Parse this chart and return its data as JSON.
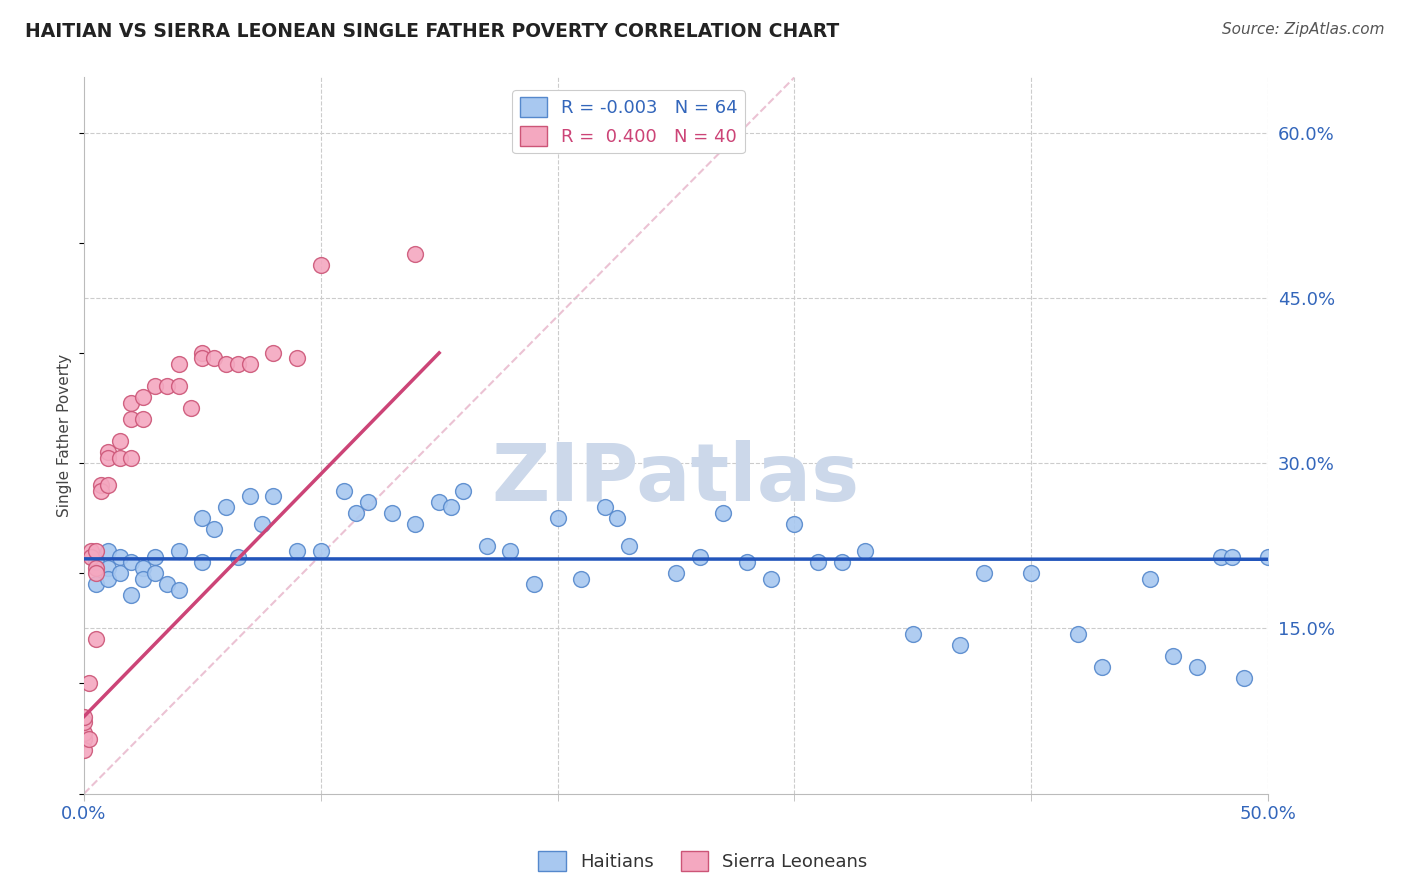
{
  "title": "HAITIAN VS SIERRA LEONEAN SINGLE FATHER POVERTY CORRELATION CHART",
  "source": "Source: ZipAtlas.com",
  "ylabel": "Single Father Poverty",
  "y_tick_labels": [
    "15.0%",
    "30.0%",
    "45.0%",
    "60.0%"
  ],
  "y_tick_values": [
    0.15,
    0.3,
    0.45,
    0.6
  ],
  "x_tick_values": [
    0.0,
    0.1,
    0.2,
    0.3,
    0.4,
    0.5
  ],
  "xlim": [
    0.0,
    0.5
  ],
  "ylim": [
    0.0,
    0.65
  ],
  "haitian_color": "#a8c8f0",
  "sierra_color": "#f4a8c0",
  "haitian_edge": "#5588cc",
  "sierra_edge": "#cc5577",
  "blue_line_color": "#2255bb",
  "pink_line_color": "#cc4477",
  "pink_dash_color": "#e8b8cc",
  "title_color": "#222222",
  "axis_label_color": "#3366bb",
  "grid_color": "#cccccc",
  "watermark_color": "#ccd8ea",
  "legend_box_color": "#dddddd",
  "haitian_x": [
    0.005,
    0.005,
    0.01,
    0.01,
    0.01,
    0.015,
    0.015,
    0.02,
    0.02,
    0.025,
    0.025,
    0.03,
    0.03,
    0.035,
    0.04,
    0.04,
    0.05,
    0.05,
    0.055,
    0.06,
    0.065,
    0.07,
    0.075,
    0.08,
    0.09,
    0.1,
    0.11,
    0.115,
    0.12,
    0.13,
    0.14,
    0.15,
    0.155,
    0.16,
    0.17,
    0.18,
    0.19,
    0.2,
    0.21,
    0.22,
    0.225,
    0.23,
    0.25,
    0.26,
    0.27,
    0.28,
    0.29,
    0.3,
    0.31,
    0.32,
    0.33,
    0.35,
    0.37,
    0.38,
    0.4,
    0.42,
    0.43,
    0.45,
    0.46,
    0.47,
    0.48,
    0.485,
    0.49,
    0.5
  ],
  "haitian_y": [
    0.21,
    0.19,
    0.22,
    0.205,
    0.195,
    0.215,
    0.2,
    0.21,
    0.18,
    0.205,
    0.195,
    0.215,
    0.2,
    0.19,
    0.22,
    0.185,
    0.25,
    0.21,
    0.24,
    0.26,
    0.215,
    0.27,
    0.245,
    0.27,
    0.22,
    0.22,
    0.275,
    0.255,
    0.265,
    0.255,
    0.245,
    0.265,
    0.26,
    0.275,
    0.225,
    0.22,
    0.19,
    0.25,
    0.195,
    0.26,
    0.25,
    0.225,
    0.2,
    0.215,
    0.255,
    0.21,
    0.195,
    0.245,
    0.21,
    0.21,
    0.22,
    0.145,
    0.135,
    0.2,
    0.2,
    0.145,
    0.115,
    0.195,
    0.125,
    0.115,
    0.215,
    0.215,
    0.105,
    0.215
  ],
  "sierra_x": [
    0.0,
    0.0,
    0.0,
    0.0,
    0.0,
    0.002,
    0.002,
    0.003,
    0.003,
    0.005,
    0.005,
    0.005,
    0.005,
    0.007,
    0.007,
    0.01,
    0.01,
    0.01,
    0.015,
    0.015,
    0.02,
    0.02,
    0.02,
    0.025,
    0.025,
    0.03,
    0.035,
    0.04,
    0.04,
    0.045,
    0.05,
    0.05,
    0.055,
    0.06,
    0.065,
    0.07,
    0.08,
    0.09,
    0.1,
    0.14
  ],
  "sierra_y": [
    0.05,
    0.04,
    0.055,
    0.065,
    0.07,
    0.05,
    0.1,
    0.22,
    0.215,
    0.22,
    0.205,
    0.2,
    0.14,
    0.28,
    0.275,
    0.31,
    0.305,
    0.28,
    0.32,
    0.305,
    0.355,
    0.34,
    0.305,
    0.36,
    0.34,
    0.37,
    0.37,
    0.39,
    0.37,
    0.35,
    0.4,
    0.395,
    0.395,
    0.39,
    0.39,
    0.39,
    0.4,
    0.395,
    0.48,
    0.49
  ]
}
